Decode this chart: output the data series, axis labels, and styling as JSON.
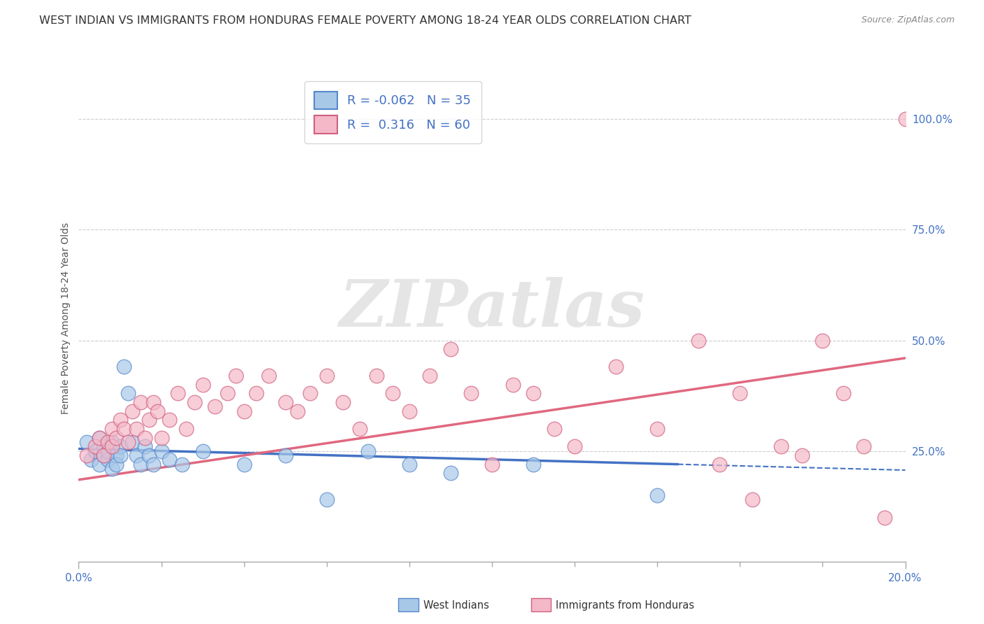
{
  "title": "WEST INDIAN VS IMMIGRANTS FROM HONDURAS FEMALE POVERTY AMONG 18-24 YEAR OLDS CORRELATION CHART",
  "source": "Source: ZipAtlas.com",
  "ylabel": "Female Poverty Among 18-24 Year Olds",
  "y_tick_labels": [
    "25.0%",
    "50.0%",
    "75.0%",
    "100.0%"
  ],
  "y_tick_values": [
    0.25,
    0.5,
    0.75,
    1.0
  ],
  "x_range": [
    0.0,
    0.2
  ],
  "y_range": [
    0.0,
    1.1
  ],
  "series1_label": "West Indians",
  "series1_color": "#a8c8e8",
  "series1_edge_color": "#5588cc",
  "series1_line_color": "#4472c4",
  "series1_R": -0.062,
  "series1_N": 35,
  "series2_label": "Immigrants from Honduras",
  "series2_color": "#f4b8c8",
  "series2_edge_color": "#d06080",
  "series2_line_color": "#e06880",
  "series2_R": 0.316,
  "series2_N": 60,
  "background_color": "#ffffff",
  "grid_color": "#cccccc",
  "watermark_text": "ZIPatlas",
  "title_fontsize": 11.5,
  "axis_label_fontsize": 10,
  "tick_fontsize": 11,
  "legend_fontsize": 13,
  "series1_x": [
    0.002,
    0.003,
    0.004,
    0.005,
    0.005,
    0.006,
    0.006,
    0.007,
    0.007,
    0.008,
    0.008,
    0.009,
    0.009,
    0.01,
    0.01,
    0.011,
    0.012,
    0.013,
    0.014,
    0.015,
    0.016,
    0.017,
    0.018,
    0.02,
    0.022,
    0.025,
    0.03,
    0.04,
    0.05,
    0.06,
    0.07,
    0.08,
    0.09,
    0.11,
    0.14
  ],
  "series1_y": [
    0.27,
    0.23,
    0.25,
    0.22,
    0.28,
    0.24,
    0.26,
    0.23,
    0.25,
    0.21,
    0.27,
    0.24,
    0.22,
    0.26,
    0.24,
    0.44,
    0.38,
    0.27,
    0.24,
    0.22,
    0.26,
    0.24,
    0.22,
    0.25,
    0.23,
    0.22,
    0.25,
    0.22,
    0.24,
    0.14,
    0.25,
    0.22,
    0.2,
    0.22,
    0.15
  ],
  "series2_x": [
    0.002,
    0.004,
    0.005,
    0.006,
    0.007,
    0.008,
    0.008,
    0.009,
    0.01,
    0.011,
    0.012,
    0.013,
    0.014,
    0.015,
    0.016,
    0.017,
    0.018,
    0.019,
    0.02,
    0.022,
    0.024,
    0.026,
    0.028,
    0.03,
    0.033,
    0.036,
    0.038,
    0.04,
    0.043,
    0.046,
    0.05,
    0.053,
    0.056,
    0.06,
    0.064,
    0.068,
    0.072,
    0.076,
    0.08,
    0.085,
    0.09,
    0.095,
    0.1,
    0.105,
    0.11,
    0.115,
    0.12,
    0.13,
    0.14,
    0.15,
    0.155,
    0.16,
    0.163,
    0.17,
    0.175,
    0.18,
    0.185,
    0.19,
    0.195,
    0.2
  ],
  "series2_y": [
    0.24,
    0.26,
    0.28,
    0.24,
    0.27,
    0.3,
    0.26,
    0.28,
    0.32,
    0.3,
    0.27,
    0.34,
    0.3,
    0.36,
    0.28,
    0.32,
    0.36,
    0.34,
    0.28,
    0.32,
    0.38,
    0.3,
    0.36,
    0.4,
    0.35,
    0.38,
    0.42,
    0.34,
    0.38,
    0.42,
    0.36,
    0.34,
    0.38,
    0.42,
    0.36,
    0.3,
    0.42,
    0.38,
    0.34,
    0.42,
    0.48,
    0.38,
    0.22,
    0.4,
    0.38,
    0.3,
    0.26,
    0.44,
    0.3,
    0.5,
    0.22,
    0.38,
    0.14,
    0.26,
    0.24,
    0.5,
    0.38,
    0.26,
    0.1,
    1.0
  ],
  "series1_trend_x0": 0.0,
  "series1_trend_x1": 0.145,
  "series1_trend_x1_dashed": 0.2,
  "series1_trend_y0": 0.255,
  "series1_trend_y1": 0.22,
  "series2_trend_x0": 0.0,
  "series2_trend_x1": 0.2,
  "series2_trend_y0": 0.185,
  "series2_trend_y1": 0.46
}
